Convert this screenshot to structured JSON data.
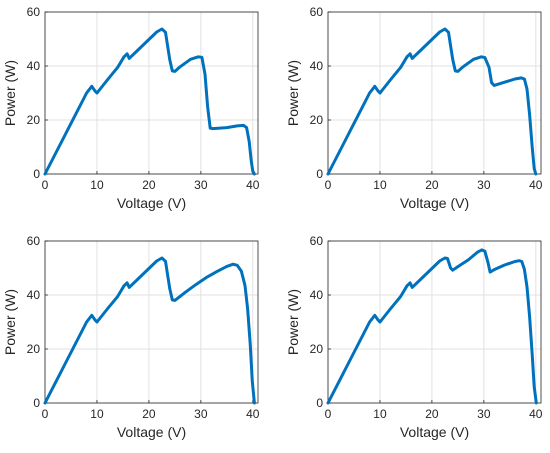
{
  "chart_data": [
    {
      "type": "line",
      "xlabel": "Voltage (V)",
      "ylabel": "Power (W)",
      "xlim": [
        0,
        41
      ],
      "ylim": [
        0,
        60
      ],
      "xticks": [
        0,
        10,
        20,
        30,
        40
      ],
      "yticks": [
        0,
        20,
        40,
        60
      ],
      "grid": true,
      "line_color": "#0072BD",
      "series": [
        {
          "x": [
            0,
            4,
            8,
            9,
            9.6,
            10,
            12,
            14,
            15.2,
            15.8,
            16.2,
            18,
            20,
            21.5,
            22.5,
            23.2,
            24,
            24.5,
            25,
            26,
            28,
            29.5,
            30.2,
            30.8,
            31.3,
            31.8,
            32.3,
            35,
            37,
            38.2,
            38.8,
            39.3,
            39.7,
            40.0,
            40.3
          ],
          "y": [
            0,
            15,
            30,
            32.5,
            30.8,
            30,
            34.8,
            39.5,
            43.4,
            44.5,
            42.8,
            46.1,
            49.8,
            52.6,
            53.7,
            52.5,
            42.5,
            38.2,
            38,
            39.7,
            42.5,
            43.4,
            43.2,
            37,
            25,
            17,
            16.8,
            17.2,
            17.8,
            18,
            17.2,
            12,
            5,
            1,
            0
          ]
        }
      ]
    },
    {
      "type": "line",
      "xlabel": "Voltage (V)",
      "ylabel": "Power (W)",
      "xlim": [
        0,
        41
      ],
      "ylim": [
        0,
        60
      ],
      "xticks": [
        0,
        10,
        20,
        30,
        40
      ],
      "yticks": [
        0,
        20,
        40,
        60
      ],
      "grid": true,
      "line_color": "#0072BD",
      "series": [
        {
          "x": [
            0,
            4,
            8,
            9,
            9.6,
            10,
            12,
            14,
            15.2,
            15.8,
            16.2,
            18,
            20,
            21.5,
            22.5,
            23.2,
            24,
            24.5,
            25,
            26,
            28,
            29.5,
            30.2,
            31.0,
            31.5,
            32,
            34,
            36,
            37.2,
            37.8,
            38.3,
            38.8,
            39.3,
            39.7,
            40.0
          ],
          "y": [
            0,
            15,
            30,
            32.5,
            30.8,
            30,
            34.8,
            39.5,
            43.4,
            44.5,
            42.8,
            46.1,
            49.8,
            52.6,
            53.7,
            52.5,
            42.5,
            38.2,
            38,
            39.7,
            42.5,
            43.4,
            43.1,
            39.5,
            33.8,
            32.8,
            34,
            35.2,
            35.6,
            35.2,
            31.5,
            22,
            10,
            2,
            0
          ]
        }
      ]
    },
    {
      "type": "line",
      "xlabel": "Voltage (V)",
      "ylabel": "Power (W)",
      "xlim": [
        0,
        41
      ],
      "ylim": [
        0,
        60
      ],
      "xticks": [
        0,
        10,
        20,
        30,
        40
      ],
      "yticks": [
        0,
        20,
        40,
        60
      ],
      "grid": true,
      "line_color": "#0072BD",
      "series": [
        {
          "x": [
            0,
            4,
            8,
            9,
            9.6,
            10,
            12,
            14,
            15.2,
            15.8,
            16.2,
            18,
            20,
            21.5,
            22.5,
            23.2,
            24,
            24.5,
            25,
            27,
            29,
            31,
            33,
            35,
            36.2,
            37,
            37.8,
            38.5,
            39,
            39.5,
            39.9,
            40.3
          ],
          "y": [
            0,
            15,
            30,
            32.5,
            30.8,
            30,
            34.8,
            39.5,
            43.4,
            44.5,
            42.8,
            46.1,
            49.8,
            52.6,
            53.7,
            52.5,
            42.5,
            38.2,
            38,
            41,
            43.8,
            46.4,
            48.6,
            50.6,
            51.4,
            51.0,
            48.8,
            43.5,
            35,
            22,
            8,
            0
          ]
        }
      ]
    },
    {
      "type": "line",
      "xlabel": "Voltage (V)",
      "ylabel": "Power (W)",
      "xlim": [
        0,
        41
      ],
      "ylim": [
        0,
        60
      ],
      "xticks": [
        0,
        10,
        20,
        30,
        40
      ],
      "yticks": [
        0,
        20,
        40,
        60
      ],
      "grid": true,
      "line_color": "#0072BD",
      "series": [
        {
          "x": [
            0,
            4,
            8,
            9,
            9.6,
            10,
            12,
            14,
            15.2,
            15.8,
            16.2,
            18,
            20,
            21.5,
            22.5,
            23.0,
            23.6,
            24.0,
            25,
            27,
            28.8,
            29.6,
            30.2,
            30.8,
            31.2,
            32,
            34,
            36,
            36.8,
            37.3,
            37.8,
            38.3,
            38.8,
            39.3,
            39.7,
            40.1
          ],
          "y": [
            0,
            15,
            30,
            32.5,
            30.8,
            30,
            34.8,
            39.5,
            43.4,
            44.5,
            42.8,
            46.1,
            49.8,
            52.6,
            53.7,
            53.5,
            50,
            49.2,
            50.5,
            53,
            55.9,
            56.7,
            56.2,
            52,
            48.5,
            49.4,
            51.1,
            52.4,
            52.7,
            52.4,
            49.5,
            43,
            32,
            18,
            6,
            0
          ]
        }
      ]
    }
  ]
}
